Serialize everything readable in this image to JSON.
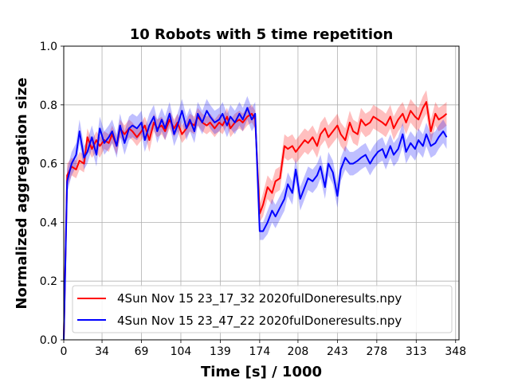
{
  "chart_data": {
    "type": "line",
    "title": "10 Robots with 5 time repetition",
    "xlabel": "Time [s] / 1000",
    "ylabel": "Normalized aggregation size",
    "xlim": [
      0,
      351
    ],
    "ylim": [
      0,
      1.0
    ],
    "xticks": [
      0,
      34,
      69,
      104,
      139,
      174,
      208,
      243,
      278,
      313,
      348
    ],
    "yticks": [
      "0.0",
      "0.2",
      "0.4",
      "0.6",
      "0.8",
      "1.0"
    ],
    "grid": true,
    "legend_position": "lower-right",
    "series": [
      {
        "name": "4Sun Nov 15 23_17_32 2020fulDoneresults.npy",
        "color": "#ff0000",
        "x": [
          0,
          3,
          7,
          11,
          14,
          18,
          21,
          25,
          29,
          32,
          36,
          40,
          43,
          47,
          50,
          54,
          58,
          61,
          65,
          69,
          72,
          76,
          80,
          83,
          87,
          90,
          94,
          98,
          101,
          105,
          109,
          112,
          116,
          119,
          123,
          127,
          130,
          134,
          138,
          141,
          145,
          148,
          152,
          156,
          159,
          163,
          167,
          170,
          174,
          177,
          181,
          185,
          188,
          192,
          196,
          199,
          203,
          206,
          210,
          214,
          217,
          221,
          225,
          228,
          232,
          235,
          239,
          243,
          246,
          250,
          254,
          257,
          261,
          264,
          268,
          272,
          275,
          279,
          283,
          286,
          290,
          293,
          297,
          301,
          304,
          308,
          312,
          315,
          319,
          322,
          326,
          330,
          333,
          337,
          340
        ],
        "y": [
          0.0,
          0.56,
          0.59,
          0.58,
          0.61,
          0.6,
          0.69,
          0.65,
          0.68,
          0.66,
          0.68,
          0.67,
          0.7,
          0.66,
          0.72,
          0.7,
          0.72,
          0.71,
          0.69,
          0.71,
          0.73,
          0.68,
          0.74,
          0.72,
          0.73,
          0.71,
          0.75,
          0.72,
          0.74,
          0.7,
          0.72,
          0.74,
          0.73,
          0.76,
          0.74,
          0.73,
          0.74,
          0.72,
          0.74,
          0.73,
          0.76,
          0.72,
          0.74,
          0.75,
          0.74,
          0.76,
          0.77,
          0.75,
          0.43,
          0.46,
          0.52,
          0.5,
          0.54,
          0.55,
          0.66,
          0.65,
          0.66,
          0.64,
          0.66,
          0.68,
          0.67,
          0.69,
          0.66,
          0.7,
          0.72,
          0.69,
          0.71,
          0.73,
          0.7,
          0.68,
          0.74,
          0.71,
          0.7,
          0.75,
          0.73,
          0.74,
          0.76,
          0.75,
          0.74,
          0.73,
          0.76,
          0.72,
          0.75,
          0.77,
          0.74,
          0.78,
          0.76,
          0.75,
          0.79,
          0.81,
          0.71,
          0.77,
          0.75,
          0.76,
          0.77
        ],
        "y_lower": [
          0.0,
          0.52,
          0.56,
          0.55,
          0.58,
          0.57,
          0.65,
          0.62,
          0.64,
          0.62,
          0.65,
          0.64,
          0.67,
          0.63,
          0.69,
          0.67,
          0.69,
          0.68,
          0.66,
          0.68,
          0.7,
          0.64,
          0.71,
          0.69,
          0.7,
          0.68,
          0.72,
          0.69,
          0.71,
          0.67,
          0.69,
          0.71,
          0.7,
          0.73,
          0.71,
          0.7,
          0.71,
          0.69,
          0.71,
          0.7,
          0.73,
          0.69,
          0.71,
          0.72,
          0.71,
          0.73,
          0.74,
          0.72,
          0.4,
          0.42,
          0.48,
          0.46,
          0.5,
          0.51,
          0.62,
          0.61,
          0.62,
          0.6,
          0.62,
          0.64,
          0.63,
          0.65,
          0.62,
          0.66,
          0.68,
          0.65,
          0.67,
          0.69,
          0.66,
          0.64,
          0.7,
          0.67,
          0.66,
          0.71,
          0.69,
          0.7,
          0.72,
          0.71,
          0.7,
          0.69,
          0.72,
          0.68,
          0.71,
          0.73,
          0.7,
          0.74,
          0.72,
          0.71,
          0.75,
          0.77,
          0.67,
          0.73,
          0.71,
          0.72,
          0.73
        ],
        "y_upper": [
          0.0,
          0.6,
          0.62,
          0.61,
          0.64,
          0.63,
          0.72,
          0.68,
          0.71,
          0.69,
          0.71,
          0.7,
          0.73,
          0.69,
          0.75,
          0.73,
          0.75,
          0.74,
          0.72,
          0.74,
          0.76,
          0.72,
          0.77,
          0.75,
          0.76,
          0.74,
          0.78,
          0.75,
          0.77,
          0.73,
          0.75,
          0.77,
          0.76,
          0.79,
          0.77,
          0.76,
          0.77,
          0.75,
          0.77,
          0.76,
          0.79,
          0.75,
          0.77,
          0.78,
          0.77,
          0.79,
          0.8,
          0.78,
          0.46,
          0.5,
          0.56,
          0.54,
          0.58,
          0.59,
          0.7,
          0.69,
          0.7,
          0.68,
          0.7,
          0.72,
          0.71,
          0.73,
          0.7,
          0.74,
          0.76,
          0.73,
          0.75,
          0.77,
          0.74,
          0.72,
          0.78,
          0.75,
          0.74,
          0.79,
          0.77,
          0.78,
          0.8,
          0.79,
          0.78,
          0.77,
          0.8,
          0.76,
          0.79,
          0.81,
          0.78,
          0.82,
          0.8,
          0.79,
          0.83,
          0.85,
          0.75,
          0.81,
          0.79,
          0.8,
          0.81
        ]
      },
      {
        "name": "4Sun Nov 15 23_47_22 2020fulDoneresults.npy",
        "color": "#0000ff",
        "x": [
          0,
          3,
          7,
          11,
          14,
          18,
          21,
          25,
          29,
          32,
          36,
          40,
          43,
          47,
          50,
          54,
          58,
          61,
          65,
          69,
          72,
          76,
          80,
          83,
          87,
          90,
          94,
          98,
          101,
          105,
          109,
          112,
          116,
          119,
          123,
          127,
          130,
          134,
          138,
          141,
          145,
          148,
          152,
          156,
          159,
          163,
          167,
          170,
          174,
          177,
          181,
          185,
          188,
          192,
          196,
          199,
          203,
          206,
          210,
          214,
          217,
          221,
          225,
          228,
          232,
          235,
          239,
          243,
          246,
          250,
          254,
          257,
          261,
          264,
          268,
          272,
          275,
          279,
          283,
          286,
          290,
          293,
          297,
          301,
          304,
          308,
          312,
          315,
          319,
          322,
          326,
          330,
          333,
          337,
          340
        ],
        "y": [
          0.0,
          0.54,
          0.6,
          0.63,
          0.71,
          0.62,
          0.64,
          0.69,
          0.63,
          0.72,
          0.67,
          0.69,
          0.71,
          0.66,
          0.73,
          0.67,
          0.72,
          0.73,
          0.72,
          0.74,
          0.68,
          0.73,
          0.76,
          0.71,
          0.75,
          0.72,
          0.77,
          0.7,
          0.73,
          0.78,
          0.72,
          0.75,
          0.71,
          0.77,
          0.74,
          0.78,
          0.76,
          0.74,
          0.75,
          0.77,
          0.73,
          0.76,
          0.74,
          0.77,
          0.75,
          0.79,
          0.75,
          0.77,
          0.37,
          0.37,
          0.4,
          0.44,
          0.42,
          0.45,
          0.48,
          0.53,
          0.5,
          0.58,
          0.48,
          0.52,
          0.55,
          0.54,
          0.56,
          0.59,
          0.52,
          0.6,
          0.57,
          0.49,
          0.58,
          0.62,
          0.6,
          0.6,
          0.61,
          0.62,
          0.63,
          0.6,
          0.62,
          0.64,
          0.65,
          0.62,
          0.66,
          0.63,
          0.65,
          0.7,
          0.64,
          0.67,
          0.65,
          0.68,
          0.66,
          0.7,
          0.66,
          0.67,
          0.69,
          0.71,
          0.69
        ],
        "y_lower": [
          0.0,
          0.5,
          0.56,
          0.59,
          0.67,
          0.58,
          0.6,
          0.65,
          0.59,
          0.68,
          0.63,
          0.65,
          0.67,
          0.62,
          0.69,
          0.63,
          0.68,
          0.69,
          0.68,
          0.7,
          0.64,
          0.69,
          0.72,
          0.67,
          0.71,
          0.68,
          0.73,
          0.66,
          0.69,
          0.74,
          0.68,
          0.71,
          0.67,
          0.73,
          0.7,
          0.74,
          0.72,
          0.7,
          0.71,
          0.73,
          0.69,
          0.72,
          0.7,
          0.73,
          0.71,
          0.75,
          0.71,
          0.73,
          0.34,
          0.34,
          0.36,
          0.4,
          0.38,
          0.41,
          0.44,
          0.49,
          0.46,
          0.54,
          0.44,
          0.48,
          0.51,
          0.5,
          0.52,
          0.55,
          0.48,
          0.56,
          0.53,
          0.45,
          0.54,
          0.58,
          0.56,
          0.56,
          0.57,
          0.58,
          0.59,
          0.56,
          0.58,
          0.6,
          0.61,
          0.58,
          0.62,
          0.59,
          0.61,
          0.66,
          0.6,
          0.63,
          0.61,
          0.64,
          0.62,
          0.66,
          0.62,
          0.63,
          0.65,
          0.67,
          0.65
        ],
        "y_upper": [
          0.0,
          0.58,
          0.64,
          0.67,
          0.75,
          0.66,
          0.68,
          0.73,
          0.67,
          0.76,
          0.71,
          0.73,
          0.75,
          0.7,
          0.77,
          0.71,
          0.76,
          0.77,
          0.76,
          0.78,
          0.72,
          0.77,
          0.8,
          0.75,
          0.79,
          0.76,
          0.81,
          0.74,
          0.77,
          0.82,
          0.76,
          0.79,
          0.75,
          0.81,
          0.78,
          0.82,
          0.8,
          0.78,
          0.79,
          0.81,
          0.77,
          0.8,
          0.78,
          0.81,
          0.79,
          0.83,
          0.79,
          0.81,
          0.4,
          0.4,
          0.44,
          0.48,
          0.46,
          0.49,
          0.52,
          0.57,
          0.54,
          0.62,
          0.52,
          0.56,
          0.59,
          0.58,
          0.6,
          0.63,
          0.56,
          0.64,
          0.61,
          0.53,
          0.62,
          0.66,
          0.64,
          0.64,
          0.65,
          0.66,
          0.67,
          0.64,
          0.66,
          0.68,
          0.69,
          0.66,
          0.7,
          0.67,
          0.69,
          0.74,
          0.68,
          0.71,
          0.69,
          0.72,
          0.7,
          0.74,
          0.7,
          0.71,
          0.73,
          0.75,
          0.73
        ]
      }
    ]
  }
}
